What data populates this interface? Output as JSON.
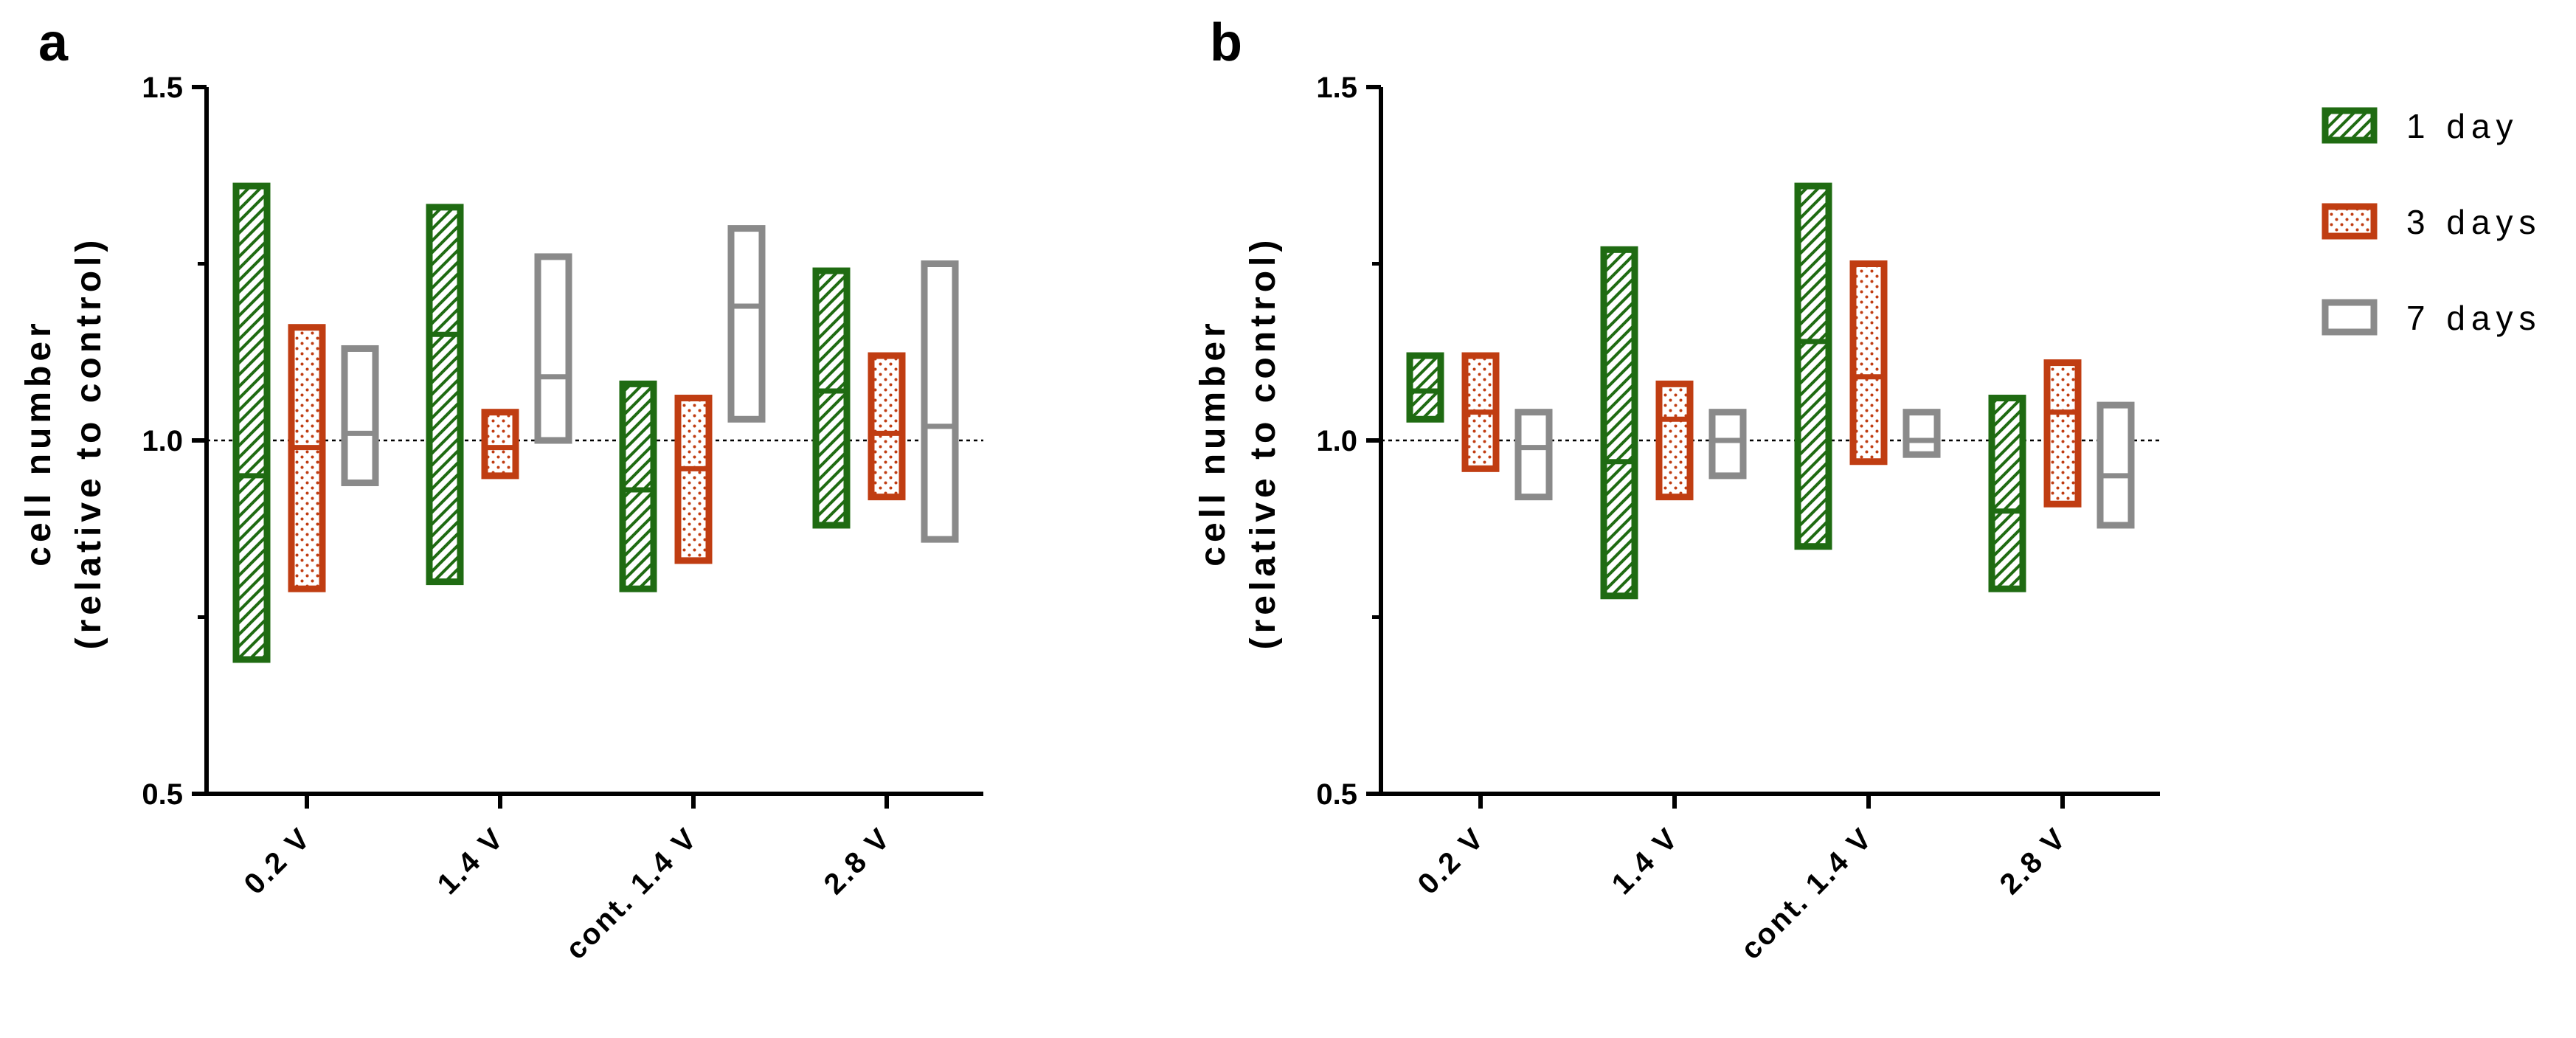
{
  "colors": {
    "day1": "#1f6b12",
    "day3": "#c03d12",
    "day7": "#8a8a8a",
    "axis": "#000000"
  },
  "legend": {
    "items": [
      {
        "label": "1 day",
        "series": "day1",
        "pattern": "hatch"
      },
      {
        "label": "3 days",
        "series": "day3",
        "pattern": "dots"
      },
      {
        "label": "7 days",
        "series": "day7",
        "pattern": "none"
      }
    ]
  },
  "chart_data": [
    {
      "panel": "a",
      "type": "floating-bar",
      "ylabel_line1": "cell number",
      "ylabel_line2": "(relative to control)",
      "ylim": [
        0.5,
        1.5
      ],
      "yticks": [
        0.5,
        1.0,
        1.5
      ],
      "yticks_minor": [
        0.75,
        1.25
      ],
      "ytick_labels": [
        "0.5",
        "1.0",
        "1.5"
      ],
      "reference_line": 1.0,
      "categories": [
        "0.2 V",
        "1.4 V",
        "cont. 1.4 V",
        "2.8 V"
      ],
      "series": [
        {
          "name": "1 day",
          "color_key": "day1",
          "pattern": "hatch",
          "min": [
            0.69,
            0.8,
            0.79,
            0.88
          ],
          "max": [
            1.36,
            1.33,
            1.08,
            1.24
          ],
          "mean": [
            0.95,
            1.15,
            0.93,
            1.07
          ]
        },
        {
          "name": "3 days",
          "color_key": "day3",
          "pattern": "dots",
          "min": [
            0.79,
            0.95,
            0.83,
            0.92
          ],
          "max": [
            1.16,
            1.04,
            1.06,
            1.12
          ],
          "mean": [
            0.99,
            0.99,
            0.96,
            1.01
          ]
        },
        {
          "name": "7 days",
          "color_key": "day7",
          "pattern": "none",
          "min": [
            0.94,
            1.0,
            1.03,
            0.86
          ],
          "max": [
            1.13,
            1.26,
            1.3,
            1.25
          ],
          "mean": [
            1.01,
            1.09,
            1.19,
            1.02
          ]
        }
      ]
    },
    {
      "panel": "b",
      "type": "floating-bar",
      "ylabel_line1": "cell number",
      "ylabel_line2": "(relative to control)",
      "ylim": [
        0.5,
        1.5
      ],
      "yticks": [
        0.5,
        1.0,
        1.5
      ],
      "yticks_minor": [
        0.75,
        1.25
      ],
      "ytick_labels": [
        "0.5",
        "1.0",
        "1.5"
      ],
      "reference_line": 1.0,
      "categories": [
        "0.2 V",
        "1.4 V",
        "cont. 1.4 V",
        "2.8 V"
      ],
      "series": [
        {
          "name": "1 day",
          "color_key": "day1",
          "pattern": "hatch",
          "min": [
            1.03,
            0.78,
            0.85,
            0.79
          ],
          "max": [
            1.12,
            1.27,
            1.36,
            1.06
          ],
          "mean": [
            1.07,
            0.97,
            1.14,
            0.9
          ]
        },
        {
          "name": "3 days",
          "color_key": "day3",
          "pattern": "dots",
          "min": [
            0.96,
            0.92,
            0.97,
            0.91
          ],
          "max": [
            1.12,
            1.08,
            1.25,
            1.11
          ],
          "mean": [
            1.04,
            1.03,
            1.09,
            1.04
          ]
        },
        {
          "name": "7 days",
          "color_key": "day7",
          "pattern": "none",
          "min": [
            0.92,
            0.95,
            0.98,
            0.88
          ],
          "max": [
            1.04,
            1.04,
            1.04,
            1.05
          ],
          "mean": [
            0.99,
            1.0,
            1.0,
            0.95
          ]
        }
      ]
    }
  ]
}
